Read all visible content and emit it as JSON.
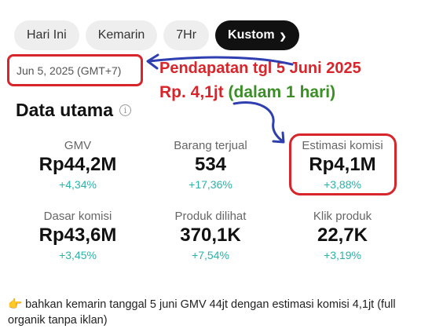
{
  "tabs": [
    {
      "label": "Hari Ini",
      "active": false
    },
    {
      "label": "Kemarin",
      "active": false
    },
    {
      "label": "7Hr",
      "active": false
    },
    {
      "label": "Kustom",
      "active": true
    }
  ],
  "date_range": "Jun 5, 2025 (GMT+7)",
  "annotation": {
    "line1": "Pendapatan tgl 5 Juni 2025",
    "line2_red": "Rp. 4,1jt",
    "line2_green": "(dalam 1 hari)"
  },
  "section_title": "Data utama",
  "metrics": [
    {
      "label": "GMV",
      "value": "Rp44,2M",
      "change": "+4,34%"
    },
    {
      "label": "Barang terjual",
      "value": "534",
      "change": "+17,36%"
    },
    {
      "label": "Estimasi komisi",
      "value": "Rp4,1M",
      "change": "+3,88%"
    },
    {
      "label": "Dasar komisi",
      "value": "Rp43,6M",
      "change": "+3,45%"
    },
    {
      "label": "Produk dilihat",
      "value": "370,1K",
      "change": "+7,54%"
    },
    {
      "label": "Klik produk",
      "value": "22,7K",
      "change": "+3,19%"
    }
  ],
  "footer_text": "bahkan kemarin tanggal 5 juni GMV 44jt dengan estimasi komisi 4,1jt (full organik tanpa iklan)",
  "colors": {
    "highlight_red": "#d8252b",
    "annotation_green": "#3a8f25",
    "change_teal": "#2ab3a9",
    "arrow_blue": "#2f3fb0"
  }
}
